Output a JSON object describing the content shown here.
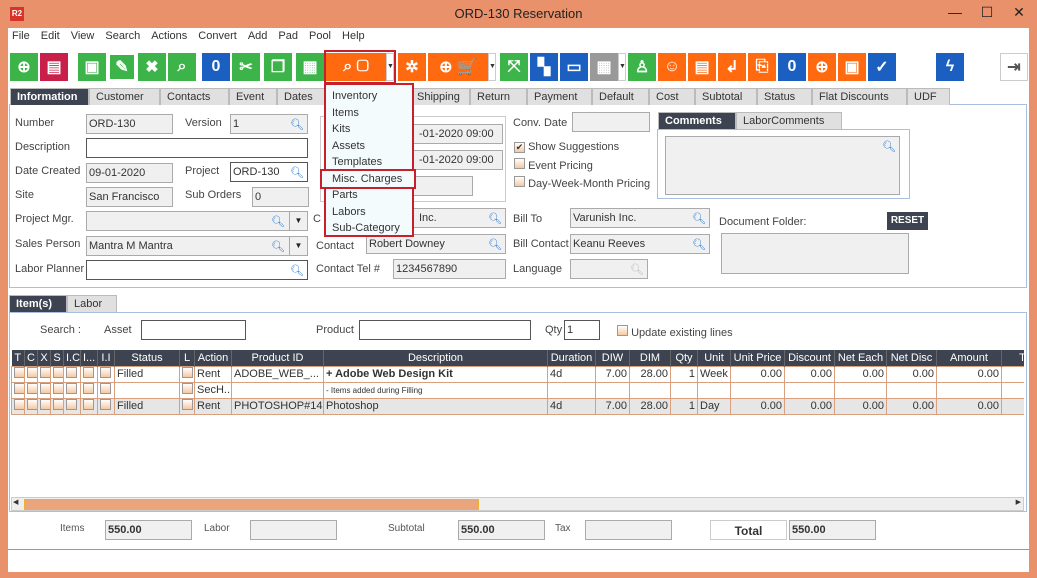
{
  "window": {
    "title": "ORD-130 Reservation",
    "logo": "R2",
    "minimize": "—",
    "maximize": "☐",
    "close": "✕"
  },
  "menu": [
    "File",
    "Edit",
    "View",
    "Search",
    "Actions",
    "Convert",
    "Add",
    "Pad",
    "Pool",
    "Help"
  ],
  "toolbar": [
    {
      "icon": "new-document-icon",
      "color": "#3cb44a",
      "glyph": "⊕"
    },
    {
      "icon": "print-icon",
      "color": "#c8204a",
      "glyph": "▤"
    },
    {
      "icon": "save-icon",
      "color": "#3cb44a",
      "glyph": "▣"
    },
    {
      "icon": "edit-pencil-icon",
      "color": "#3cb44a",
      "glyph": "✎"
    },
    {
      "icon": "delete-x-icon",
      "color": "#3cb44a",
      "glyph": "✖"
    },
    {
      "icon": "search-icon",
      "color": "#3cb44a",
      "glyph": "⌕"
    },
    {
      "icon": "copy-zero-icon",
      "color": "#1b5fc0",
      "glyph": "0"
    },
    {
      "icon": "scissors-icon",
      "color": "#3cb44a",
      "glyph": "✂"
    },
    {
      "icon": "copy-icon",
      "color": "#3cb44a",
      "glyph": "❐"
    },
    {
      "icon": "paste-icon",
      "color": "#3cb44a",
      "glyph": "▦"
    },
    {
      "icon": "search-inventory-icon",
      "color": "#ff6a10",
      "glyph": "⌕ ▢"
    },
    {
      "icon": "gears-icon",
      "color": "#ff6a10",
      "glyph": "✲"
    },
    {
      "icon": "add-purchase-order-cart-icon",
      "color": "#ff6a10",
      "glyph": "⊕ 🛒"
    },
    {
      "icon": "expand-icon",
      "color": "#3cb44a",
      "glyph": "⤧"
    },
    {
      "icon": "tree-structure-icon",
      "color": "#1b5fc0",
      "glyph": "▚"
    },
    {
      "icon": "chat-icon",
      "color": "#1b5fc0",
      "glyph": "▭"
    },
    {
      "icon": "calendar-icon",
      "color": "#999999",
      "glyph": "▦"
    },
    {
      "icon": "hierarchy-icon",
      "color": "#3cb44a",
      "glyph": "♙"
    },
    {
      "icon": "smiley-icon",
      "color": "#ff6a10",
      "glyph": "☺"
    },
    {
      "icon": "scroll-icon",
      "color": "#ff6a10",
      "glyph": "▤"
    },
    {
      "icon": "return-icon",
      "color": "#ff6a10",
      "glyph": "↲"
    },
    {
      "icon": "box-return-icon",
      "color": "#ff6a10",
      "glyph": "⎘"
    },
    {
      "icon": "message-zero-icon",
      "color": "#1b5fc0",
      "glyph": "0"
    },
    {
      "icon": "coins-add-icon",
      "color": "#ff6a10",
      "glyph": "⊕"
    },
    {
      "icon": "safe-icon",
      "color": "#ff6a10",
      "glyph": "▣"
    },
    {
      "icon": "truck-check-icon",
      "color": "#1b5fc0",
      "glyph": "✓"
    },
    {
      "icon": "lightning-icon",
      "color": "#1b5fc0",
      "glyph": "ϟ"
    },
    {
      "icon": "exit-icon",
      "color": "#ffffff",
      "glyph": "⇥"
    }
  ],
  "search_menu": {
    "items": [
      "Inventory",
      "Items",
      "Kits",
      "Assets",
      "Templates",
      "Misc. Charges",
      "Parts",
      "Labors",
      "Sub-Category"
    ],
    "highlighted": "Misc. Charges"
  },
  "tabs": [
    "Information",
    "Customer",
    "Contacts",
    "Event",
    "Dates",
    "Shipping",
    "Return",
    "Payment",
    "Default",
    "Cost",
    "Subtotal",
    "Status",
    "Flat Discounts",
    "UDF"
  ],
  "info": {
    "number_label": "Number",
    "number": "ORD-130",
    "version_label": "Version",
    "version": "1",
    "description_label": "Description",
    "description": "",
    "date_created_label": "Date Created",
    "date_created": "09-01-2020",
    "project_label": "Project",
    "project": "ORD-130",
    "site_label": "Site",
    "site": "San Francisco",
    "sub_orders_label": "Sub Orders",
    "sub_orders": "0",
    "project_mgr_label": "Project Mgr.",
    "project_mgr": "",
    "sales_person_label": "Sales Person",
    "sales_person": "Mantra M Mantra",
    "labor_planner_label": "Labor Planner",
    "labor_planner": "",
    "date1": "-01-2020 09:00",
    "date2": "-01-2020 09:00",
    "customer_prefix": "C",
    "customer": "Inc.",
    "contact_label": "Contact",
    "contact": "Robert Downey",
    "contact_tel_label": "Contact Tel #",
    "contact_tel": "1234567890",
    "conv_date_label": "Conv. Date",
    "conv_date": "",
    "show_suggestions": "Show Suggestions",
    "event_pricing": "Event Pricing",
    "dwm_pricing": "Day-Week-Month Pricing",
    "bill_to_label": "Bill To",
    "bill_to": "Varunish Inc.",
    "bill_contact_label": "Bill Contact",
    "bill_contact": "Keanu Reeves",
    "language_label": "Language",
    "language": "",
    "comments_tabs": [
      "Comments",
      "LaborComments"
    ],
    "document_folder_label": "Document Folder:",
    "reset": "RESET"
  },
  "items_tabs": [
    "Item(s)",
    "Labor"
  ],
  "search_bar": {
    "search_label": "Search :",
    "asset_label": "Asset",
    "product_label": "Product",
    "qty_label": "Qty",
    "qty": "1",
    "update_label": "Update existing lines"
  },
  "table": {
    "columns": [
      "T",
      "C",
      "X",
      "S",
      "I.C",
      "I...",
      "I.I",
      "Status",
      "L",
      "Action",
      "Product ID",
      "Description",
      "Duration",
      "DIW",
      "DIM",
      "Qty",
      "Unit",
      "Unit Price",
      "Discount",
      "Net Each",
      "Net Disc",
      "Amount",
      "Tot"
    ],
    "rows": [
      {
        "status": "Filled",
        "action": "Rent",
        "product_id": "ADOBE_WEB_...",
        "description": "+ Adobe Web Design Kit",
        "duration": "4d",
        "diw": "7.00",
        "dim": "28.00",
        "qty": "1",
        "unit": "Week",
        "unit_price": "0.00",
        "discount": "0.00",
        "net_each": "0.00",
        "net_disc": "0.00",
        "amount": "0.00"
      },
      {
        "status": "",
        "action": "SecH...",
        "product_id": "",
        "description": "- Items added during Filling",
        "duration": "",
        "diw": "",
        "dim": "",
        "qty": "",
        "unit": "",
        "unit_price": "",
        "discount": "",
        "net_each": "",
        "net_disc": "",
        "amount": ""
      },
      {
        "status": "Filled",
        "action": "Rent",
        "product_id": "PHOTOSHOP#14",
        "description": "Photoshop",
        "duration": "4d",
        "diw": "7.00",
        "dim": "28.00",
        "qty": "1",
        "unit": "Day",
        "unit_price": "0.00",
        "discount": "0.00",
        "net_each": "0.00",
        "net_disc": "0.00",
        "amount": "0.00"
      }
    ]
  },
  "totals": {
    "items_label": "Items",
    "items": "550.00",
    "labor_label": "Labor",
    "labor": "",
    "subtotal_label": "Subtotal",
    "subtotal": "550.00",
    "tax_label": "Tax",
    "tax": "",
    "total_label": "Total",
    "total": "550.00"
  }
}
